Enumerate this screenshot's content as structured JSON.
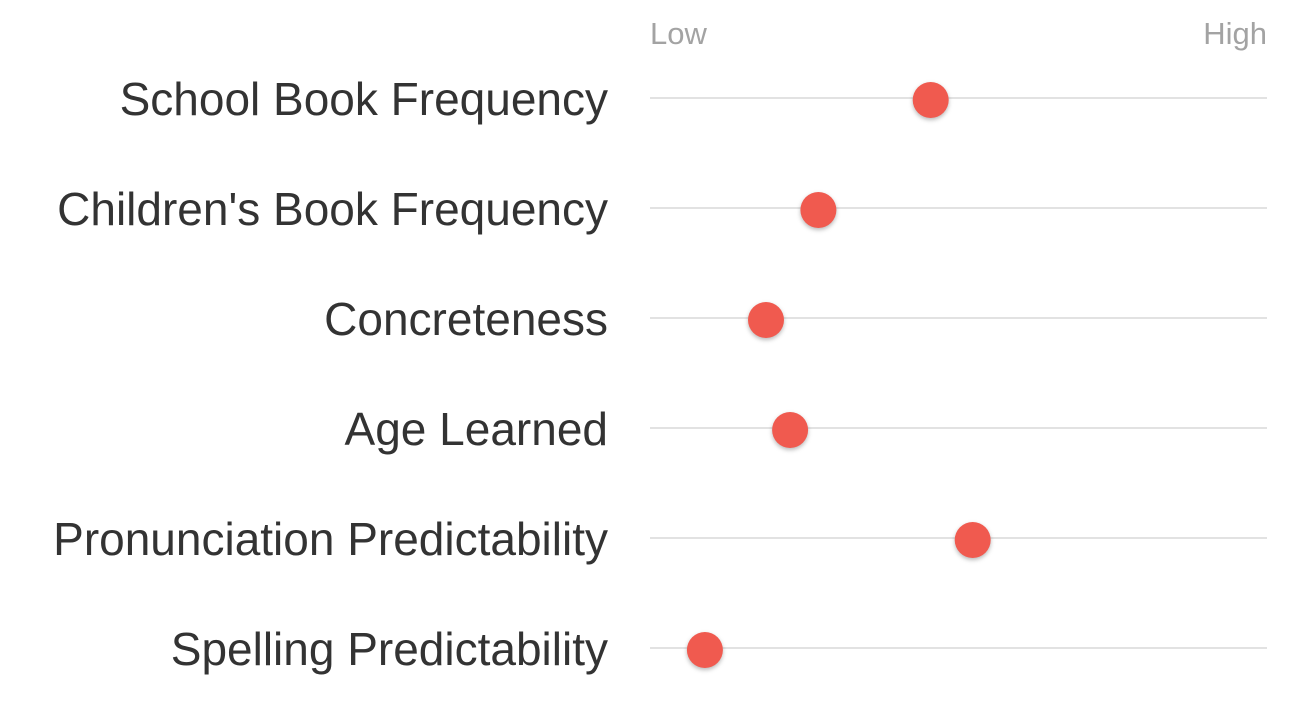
{
  "chart_data": {
    "type": "scatter",
    "scale": {
      "low_label": "Low",
      "high_label": "High",
      "range": [
        0,
        1
      ]
    },
    "categories": [
      "School Book Frequency",
      "Children's Book Frequency",
      "Concreteness",
      "Age Learned",
      "Pronunciation Predictability",
      "Spelling Predictability"
    ],
    "values": [
      0.455,
      0.273,
      0.188,
      0.227,
      0.523,
      0.089
    ],
    "grid": true,
    "legend": "none",
    "marker_color": "#f05a4f",
    "line_color": "#d9d9d9"
  }
}
